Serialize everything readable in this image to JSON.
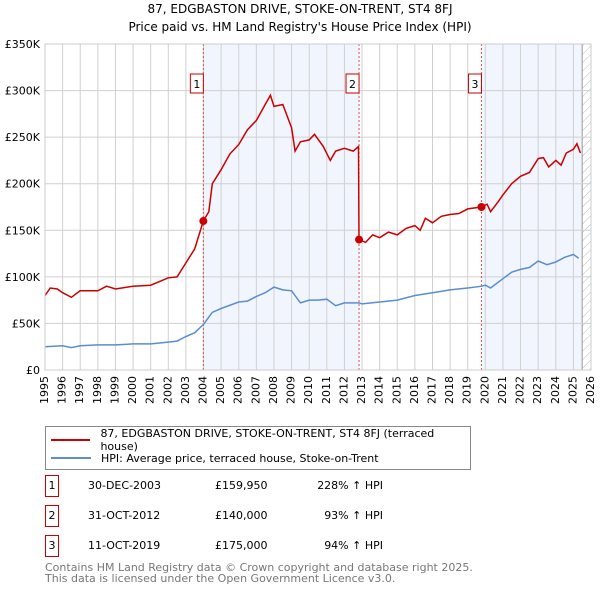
{
  "chart_data": {
    "type": "line",
    "title": "87, EDGBASTON DRIVE, STOKE-ON-TRENT, ST4 8FJ",
    "subtitle": "Price paid vs. HM Land Registry's House Price Index (HPI)",
    "xlim": [
      1995,
      2026
    ],
    "ylim": [
      0,
      350000
    ],
    "x_ticks": [
      "1995",
      "1996",
      "1997",
      "1998",
      "1999",
      "2000",
      "2001",
      "2002",
      "2003",
      "2004",
      "2005",
      "2006",
      "2007",
      "2008",
      "2009",
      "2010",
      "2011",
      "2012",
      "2013",
      "2014",
      "2015",
      "2016",
      "2017",
      "2018",
      "2019",
      "2020",
      "2021",
      "2022",
      "2023",
      "2024",
      "2025",
      "2026"
    ],
    "y_ticks": [
      {
        "v": 0,
        "label": "£0"
      },
      {
        "v": 50000,
        "label": "£50K"
      },
      {
        "v": 100000,
        "label": "£100K"
      },
      {
        "v": 150000,
        "label": "£150K"
      },
      {
        "v": 200000,
        "label": "£200K"
      },
      {
        "v": 250000,
        "label": "£250K"
      },
      {
        "v": 300000,
        "label": "£300K"
      },
      {
        "v": 350000,
        "label": "£350K"
      }
    ],
    "grid": true,
    "shaded_ranges": [
      [
        2003.99,
        2012.83
      ],
      [
        2019.78,
        2025.5
      ]
    ],
    "hatched_from": 2025.5,
    "series": [
      {
        "name": "87, EDGBASTON DRIVE, STOKE-ON-TRENT, ST4 8FJ (terraced house)",
        "color": "#cc0000",
        "x": [
          1995,
          1995.3,
          1995.7,
          1996,
          1996.5,
          1997,
          1998,
          1998.5,
          1999,
          2000,
          2001,
          2002,
          2002.5,
          2003,
          2003.5,
          2003.99,
          2004.3,
          2004.5,
          2005,
          2005.5,
          2006,
          2006.5,
          2007,
          2007.5,
          2007.8,
          2008,
          2008.5,
          2009,
          2009.2,
          2009.5,
          2010,
          2010.3,
          2010.8,
          2011.2,
          2011.5,
          2012,
          2012.5,
          2012.8,
          2012.83,
          2013.2,
          2013.6,
          2014,
          2014.5,
          2015,
          2015.5,
          2016,
          2016.3,
          2016.6,
          2017,
          2017.5,
          2018,
          2018.5,
          2019,
          2019.78,
          2020.1,
          2020.3,
          2020.7,
          2021,
          2021.5,
          2022,
          2022.5,
          2023,
          2023.3,
          2023.6,
          2024,
          2024.3,
          2024.6,
          2025,
          2025.2,
          2025.4
        ],
        "y": [
          80000,
          88000,
          87000,
          83000,
          78000,
          85000,
          85000,
          90000,
          87000,
          90000,
          91000,
          99000,
          100000,
          115000,
          130000,
          159950,
          170000,
          200000,
          215000,
          232000,
          242000,
          258000,
          268000,
          285000,
          295000,
          283000,
          285000,
          260000,
          235000,
          245000,
          247000,
          253000,
          240000,
          225000,
          235000,
          238000,
          235000,
          240000,
          140000,
          137000,
          145000,
          142000,
          148000,
          145000,
          152000,
          155000,
          150000,
          163000,
          158000,
          165000,
          167000,
          168000,
          173000,
          175000,
          178000,
          170000,
          180000,
          188000,
          200000,
          208000,
          212000,
          227000,
          228000,
          218000,
          225000,
          220000,
          233000,
          237000,
          243000,
          233000
        ]
      },
      {
        "name": "HPI: Average price, terraced house, Stoke-on-Trent",
        "color": "#5b8dd0",
        "x": [
          1995,
          1996,
          1996.5,
          1997,
          1998,
          1999,
          2000,
          2001,
          2002,
          2002.5,
          2003,
          2003.5,
          2004,
          2004.5,
          2005,
          2006,
          2006.5,
          2007,
          2007.5,
          2008,
          2008.5,
          2009,
          2009.5,
          2010,
          2010.5,
          2011,
          2011.5,
          2012,
          2012.5,
          2012.83,
          2013,
          2014,
          2015,
          2016,
          2017,
          2018,
          2019,
          2019.8,
          2020,
          2020.3,
          2021,
          2021.5,
          2022,
          2022.5,
          2023,
          2023.5,
          2024,
          2024.5,
          2025,
          2025.3
        ],
        "y": [
          25000,
          26000,
          24000,
          26000,
          27000,
          27000,
          28000,
          28000,
          30000,
          31000,
          36000,
          40000,
          49000,
          62000,
          66000,
          73000,
          74000,
          79000,
          83000,
          89000,
          86000,
          85000,
          72000,
          75000,
          75000,
          76000,
          69000,
          72000,
          72000,
          72000,
          71000,
          73000,
          75000,
          80000,
          83000,
          86000,
          88000,
          90000,
          91000,
          88000,
          98000,
          105000,
          108000,
          110000,
          117000,
          113000,
          116000,
          121000,
          124000,
          120000
        ]
      }
    ],
    "sales": [
      {
        "label": "1",
        "x": 2003.99,
        "y": 159950
      },
      {
        "label": "2",
        "x": 2012.83,
        "y": 140000
      },
      {
        "label": "3",
        "x": 2019.78,
        "y": 175000
      }
    ]
  },
  "legend": {
    "property": "87, EDGBASTON DRIVE, STOKE-ON-TRENT, ST4 8FJ (terraced house)",
    "hpi": "HPI: Average price, terraced house, Stoke-on-Trent"
  },
  "sales_table": [
    {
      "num": "1",
      "date": "30-DEC-2003",
      "price": "£159,950",
      "hpi": "228% ↑ HPI"
    },
    {
      "num": "2",
      "date": "31-OCT-2012",
      "price": "£140,000",
      "hpi": "93% ↑ HPI"
    },
    {
      "num": "3",
      "date": "11-OCT-2019",
      "price": "£175,000",
      "hpi": "94% ↑ HPI"
    }
  ],
  "footer": {
    "line1": "Contains HM Land Registry data © Crown copyright and database right 2025.",
    "line2": "This data is licensed under the Open Government Licence v3.0."
  }
}
